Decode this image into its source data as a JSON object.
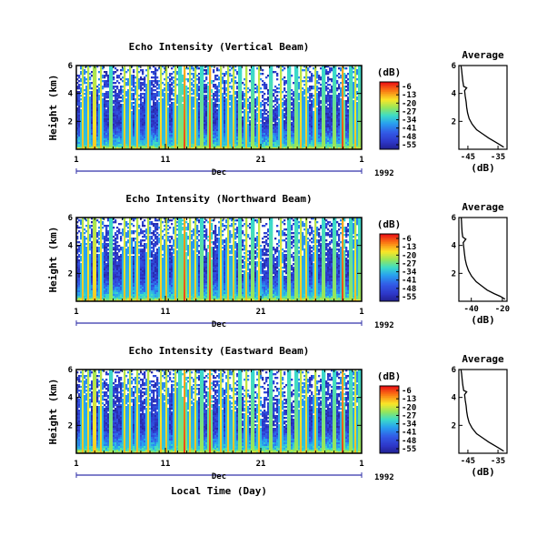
{
  "chart_data": [
    {
      "type": "heatmap",
      "title": "Echo Intensity (Vertical Beam)",
      "ylabel": "Height (km)",
      "yticks": [
        "6",
        "4",
        "2"
      ],
      "xticks": [
        "1",
        "11",
        "21",
        "1"
      ],
      "month_label": "Dec",
      "year_label": "1992",
      "xlabel": "",
      "colorbar_unit": "(dB)",
      "colorbar_ticks": [
        "-6",
        "-13",
        "-20",
        "-27",
        "-34",
        "-41",
        "-48",
        "-55"
      ],
      "ylim": [
        0,
        6
      ],
      "average": {
        "title": "Average",
        "xlabel": "(dB)",
        "xticks": [
          "-45",
          "-35"
        ],
        "yticks": [
          "6",
          "4",
          "2"
        ],
        "xlim": [
          -48,
          -32
        ],
        "ylim": [
          0,
          6
        ],
        "profile": [
          [
            -47.3,
            6.0
          ],
          [
            -47.1,
            5.7
          ],
          [
            -46.9,
            5.3
          ],
          [
            -46.7,
            4.9
          ],
          [
            -46.4,
            4.5
          ],
          [
            -45.4,
            4.4
          ],
          [
            -46.1,
            4.2
          ],
          [
            -45.9,
            3.8
          ],
          [
            -45.6,
            3.4
          ],
          [
            -45.4,
            3.0
          ],
          [
            -45.1,
            2.6
          ],
          [
            -44.6,
            2.2
          ],
          [
            -43.6,
            1.8
          ],
          [
            -42.1,
            1.4
          ],
          [
            -40.1,
            1.1
          ],
          [
            -38.1,
            0.8
          ],
          [
            -36.1,
            0.55
          ],
          [
            -34.6,
            0.35
          ],
          [
            -33.1,
            0.15
          ]
        ]
      }
    },
    {
      "type": "heatmap",
      "title": "Echo Intensity (Northward Beam)",
      "ylabel": "Height (km)",
      "yticks": [
        "6",
        "4",
        "2"
      ],
      "xticks": [
        "1",
        "11",
        "21",
        "1"
      ],
      "month_label": "Dec",
      "year_label": "1992",
      "xlabel": "",
      "colorbar_unit": "(dB)",
      "colorbar_ticks": [
        "-6",
        "-13",
        "-20",
        "-27",
        "-34",
        "-41",
        "-48",
        "-55"
      ],
      "ylim": [
        0,
        6
      ],
      "average": {
        "title": "Average",
        "xlabel": "(dB)",
        "xticks": [
          "-40",
          "-20"
        ],
        "yticks": [
          "6",
          "4",
          "2"
        ],
        "xlim": [
          -48,
          -17
        ],
        "ylim": [
          0,
          6
        ],
        "profile": [
          [
            -46.5,
            6.0
          ],
          [
            -46.3,
            5.7
          ],
          [
            -46.1,
            5.3
          ],
          [
            -45.9,
            4.9
          ],
          [
            -45.5,
            4.6
          ],
          [
            -43.5,
            4.45
          ],
          [
            -45.2,
            4.2
          ],
          [
            -44.8,
            3.8
          ],
          [
            -44.4,
            3.4
          ],
          [
            -43.9,
            3.0
          ],
          [
            -43.1,
            2.6
          ],
          [
            -41.8,
            2.2
          ],
          [
            -39.8,
            1.8
          ],
          [
            -36.8,
            1.4
          ],
          [
            -33.3,
            1.1
          ],
          [
            -29.8,
            0.8
          ],
          [
            -25.3,
            0.55
          ],
          [
            -21.3,
            0.35
          ],
          [
            -18.3,
            0.15
          ]
        ]
      }
    },
    {
      "type": "heatmap",
      "title": "Echo Intensity (Eastward Beam)",
      "ylabel": "Height (km)",
      "yticks": [
        "6",
        "4",
        "2"
      ],
      "xticks": [
        "1",
        "11",
        "21",
        "1"
      ],
      "month_label": "Dec",
      "year_label": "1992",
      "xlabel": "Local Time (Day)",
      "colorbar_unit": "(dB)",
      "colorbar_ticks": [
        "-6",
        "-13",
        "-20",
        "-27",
        "-34",
        "-41",
        "-48",
        "-55"
      ],
      "ylim": [
        0,
        6
      ],
      "average": {
        "title": "Average",
        "xlabel": "(dB)",
        "xticks": [
          "-45",
          "-35"
        ],
        "yticks": [
          "6",
          "4",
          "2"
        ],
        "xlim": [
          -48,
          -32
        ],
        "ylim": [
          0,
          6
        ],
        "profile": [
          [
            -47.3,
            6.0
          ],
          [
            -47.1,
            5.7
          ],
          [
            -46.9,
            5.3
          ],
          [
            -46.7,
            4.9
          ],
          [
            -46.4,
            4.5
          ],
          [
            -45.4,
            4.4
          ],
          [
            -46.1,
            4.2
          ],
          [
            -45.9,
            3.8
          ],
          [
            -45.6,
            3.4
          ],
          [
            -45.4,
            3.0
          ],
          [
            -45.1,
            2.6
          ],
          [
            -44.6,
            2.2
          ],
          [
            -43.6,
            1.8
          ],
          [
            -42.1,
            1.4
          ],
          [
            -40.1,
            1.1
          ],
          [
            -38.1,
            0.8
          ],
          [
            -36.1,
            0.55
          ],
          [
            -34.6,
            0.35
          ],
          [
            -33.1,
            0.15
          ]
        ]
      }
    }
  ]
}
